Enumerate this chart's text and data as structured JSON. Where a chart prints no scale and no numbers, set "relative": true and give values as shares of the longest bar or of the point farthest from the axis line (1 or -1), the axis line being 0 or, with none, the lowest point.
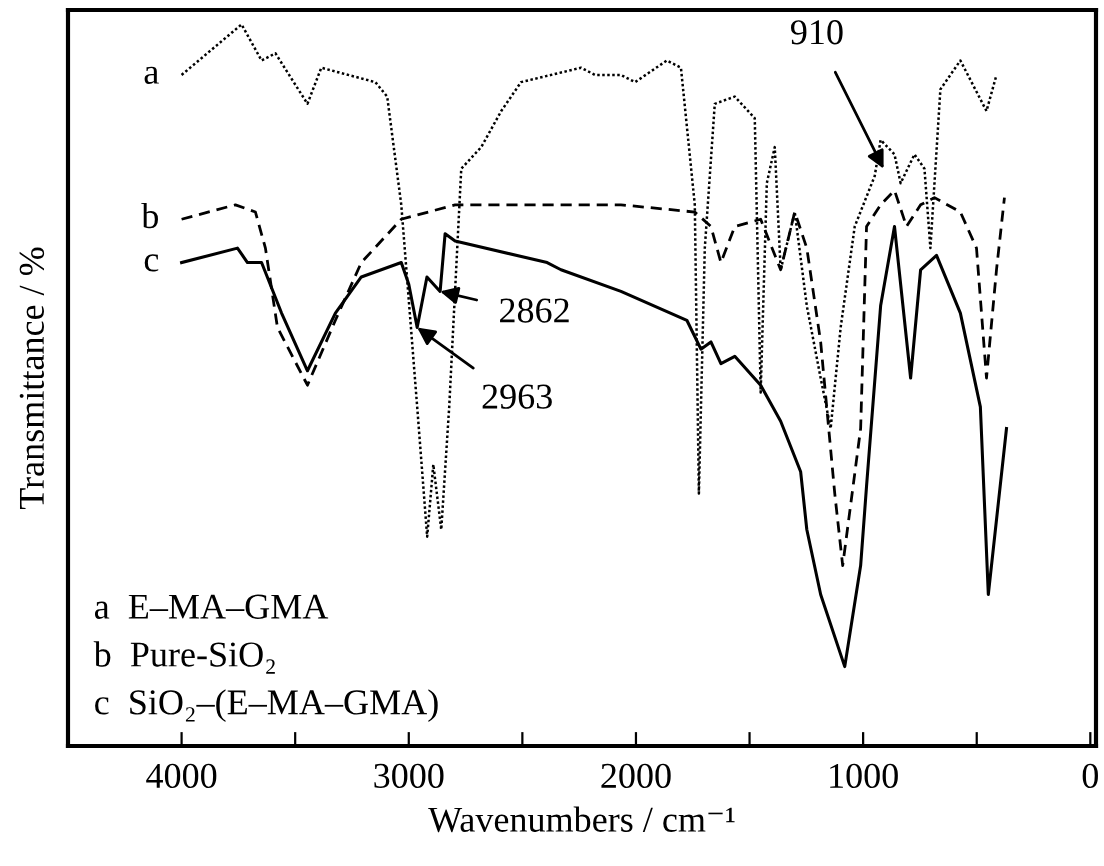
{
  "chart_data": {
    "type": "line",
    "relative": true,
    "xlabel": "Wavenumbers / cm⁻¹",
    "ylabel": "Transmittance / %",
    "xlim": [
      4500,
      -25
    ],
    "xticks": [
      4000,
      {
        "value": 3500,
        "label": null
      },
      3000,
      {
        "value": 2500,
        "label": null
      },
      2000,
      {
        "value": 1500,
        "label": null
      },
      1000,
      {
        "value": 500,
        "label": null
      },
      0
    ],
    "tick_labels": "x",
    "grid": false,
    "series": [
      {
        "name": "a",
        "color": "#000000",
        "line_style": "dotted",
        "x": [
          4000,
          3736,
          3648,
          3587,
          3446,
          3385,
          3147,
          3095,
          3033,
          2963,
          2919,
          2892,
          2857,
          2822,
          2769,
          2681,
          2593,
          2506,
          2242,
          2180,
          2066,
          2004,
          1864,
          1802,
          1741,
          1723,
          1697,
          1653,
          1565,
          1477,
          1451,
          1424,
          1389,
          1363,
          1301,
          1248,
          1187,
          1143,
          1099,
          1037,
          949,
          923,
          862,
          835,
          774,
          730,
          704,
          660,
          572,
          457,
          413
        ],
        "values": [
          0.93,
          1.0,
          0.95,
          0.96,
          0.89,
          0.94,
          0.92,
          0.9,
          0.75,
          0.47,
          0.29,
          0.39,
          0.3,
          0.47,
          0.8,
          0.83,
          0.88,
          0.92,
          0.94,
          0.93,
          0.93,
          0.92,
          0.95,
          0.94,
          0.75,
          0.35,
          0.69,
          0.89,
          0.9,
          0.87,
          0.49,
          0.78,
          0.83,
          0.66,
          0.74,
          0.61,
          0.51,
          0.44,
          0.58,
          0.72,
          0.79,
          0.84,
          0.82,
          0.78,
          0.82,
          0.8,
          0.69,
          0.91,
          0.95,
          0.88,
          0.93
        ]
      },
      {
        "name": "b",
        "color": "#000000",
        "line_style": "dashed",
        "x": [
          4000,
          3763,
          3675,
          3631,
          3578,
          3446,
          3323,
          3209,
          3033,
          2796,
          2506,
          2330,
          2066,
          1741,
          1670,
          1626,
          1565,
          1451,
          1363,
          1301,
          1248,
          1187,
          1125,
          1090,
          1011,
          985,
          923,
          862,
          809,
          747,
          686,
          572,
          501,
          457,
          413,
          378
        ],
        "values": [
          0.73,
          0.75,
          0.74,
          0.69,
          0.58,
          0.5,
          0.59,
          0.67,
          0.73,
          0.75,
          0.75,
          0.75,
          0.75,
          0.74,
          0.72,
          0.67,
          0.72,
          0.73,
          0.66,
          0.74,
          0.69,
          0.56,
          0.35,
          0.25,
          0.44,
          0.72,
          0.75,
          0.77,
          0.72,
          0.75,
          0.76,
          0.74,
          0.69,
          0.51,
          0.66,
          0.76
        ]
      },
      {
        "name": "c",
        "color": "#000000",
        "line_style": "solid",
        "x": [
          4000,
          3754,
          3710,
          3648,
          3560,
          3446,
          3323,
          3209,
          3033,
          3000,
          2963,
          2920,
          2862,
          2840,
          2796,
          2391,
          2330,
          2066,
          1776,
          1714,
          1670,
          1626,
          1565,
          1451,
          1363,
          1275,
          1248,
          1187,
          1081,
          1011,
          985,
          923,
          862,
          791,
          747,
          677,
          572,
          484,
          449,
          369
        ],
        "values": [
          0.67,
          0.69,
          0.67,
          0.67,
          0.6,
          0.52,
          0.6,
          0.65,
          0.67,
          0.64,
          0.58,
          0.65,
          0.63,
          0.71,
          0.7,
          0.67,
          0.66,
          0.63,
          0.59,
          0.55,
          0.56,
          0.53,
          0.54,
          0.5,
          0.45,
          0.38,
          0.3,
          0.21,
          0.11,
          0.25,
          0.36,
          0.61,
          0.72,
          0.51,
          0.66,
          0.68,
          0.6,
          0.47,
          0.21,
          0.44
        ]
      }
    ],
    "annotations": [
      {
        "text": "910",
        "x": 910,
        "y": 0.8
      },
      {
        "text": "2862",
        "x": 2862,
        "y": 0.63
      },
      {
        "text": "2963",
        "x": 2963,
        "y": 0.58
      },
      "a  E–MA–GMA",
      "b  Pure-SiO₂",
      "c  SiO₂–(E–MA–GMA)"
    ]
  }
}
